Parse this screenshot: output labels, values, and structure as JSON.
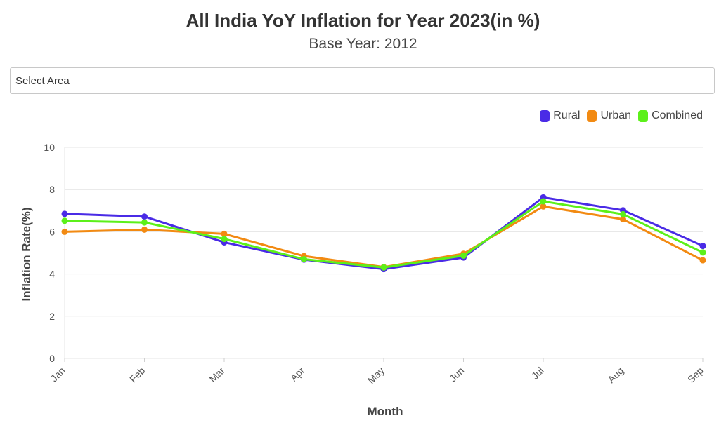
{
  "header": {
    "title": "All India YoY Inflation for Year 2023(in %)",
    "subtitle": "Base Year: 2012"
  },
  "filter": {
    "placeholder": "Select Area"
  },
  "chart_data": {
    "type": "line",
    "categories": [
      "Jan",
      "Feb",
      "Mar",
      "Apr",
      "May",
      "Jun",
      "Jul",
      "Aug",
      "Sep"
    ],
    "series": [
      {
        "name": "Rural",
        "color": "#4a2be6",
        "values": [
          6.85,
          6.72,
          5.5,
          4.68,
          4.23,
          4.78,
          7.63,
          7.02,
          5.33
        ]
      },
      {
        "name": "Urban",
        "color": "#f28a12",
        "values": [
          6.0,
          6.1,
          5.9,
          4.85,
          4.33,
          4.96,
          7.2,
          6.59,
          4.65
        ]
      },
      {
        "name": "Combined",
        "color": "#5cf01a",
        "values": [
          6.52,
          6.44,
          5.66,
          4.7,
          4.31,
          4.87,
          7.44,
          6.83,
          5.02
        ]
      }
    ],
    "xlabel": "Month",
    "ylabel": "Inflation Rate(%)",
    "ylim": [
      0,
      10
    ],
    "yticks": [
      0,
      2,
      4,
      6,
      8,
      10
    ],
    "grid": true,
    "legend": "top-right"
  }
}
